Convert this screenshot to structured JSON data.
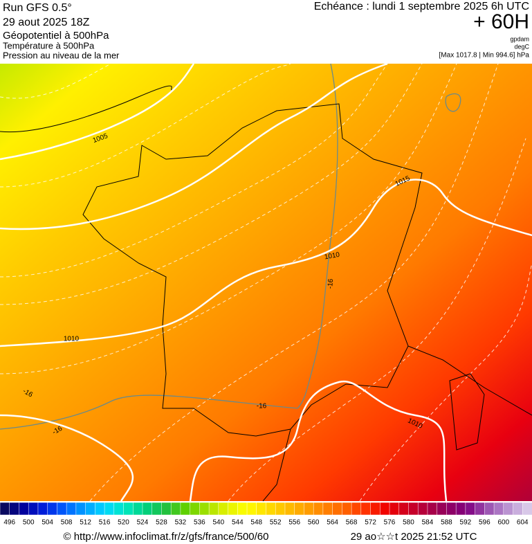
{
  "header": {
    "run": "Run GFS 0.5°",
    "date": "29 aout 2025 18Z",
    "title": "Géopotentiel à 500hPa",
    "subtitle_temperature": "Température à 500hPa",
    "subtitle_pressure": "Pression au niveau de la mer",
    "valid": "Echéance : lundi 1 septembre 2025 6h UTC",
    "lead": "+ 60H",
    "unit_geopotential": "gpdam",
    "unit_temperature": "degC",
    "pressure_range": "[Max 1017.8 | Min 994.6] hPa"
  },
  "map": {
    "isobar_labels": [
      "1005",
      "1015",
      "1010",
      "1010",
      "1010"
    ],
    "isotherm_labels": [
      "-16",
      "-16",
      "-16",
      "-16"
    ]
  },
  "colorbar": {
    "ticks": [
      496,
      500,
      504,
      508,
      512,
      516,
      520,
      524,
      528,
      532,
      536,
      540,
      544,
      548,
      552,
      556,
      560,
      564,
      568,
      572,
      576,
      580,
      584,
      588,
      592,
      596,
      600,
      604
    ]
  },
  "footer": {
    "source": "© http://www.infoclimat.fr/z/gfs/france/500/60",
    "timestamp": "29 ao☆☆t 2025 21:52 UTC"
  }
}
